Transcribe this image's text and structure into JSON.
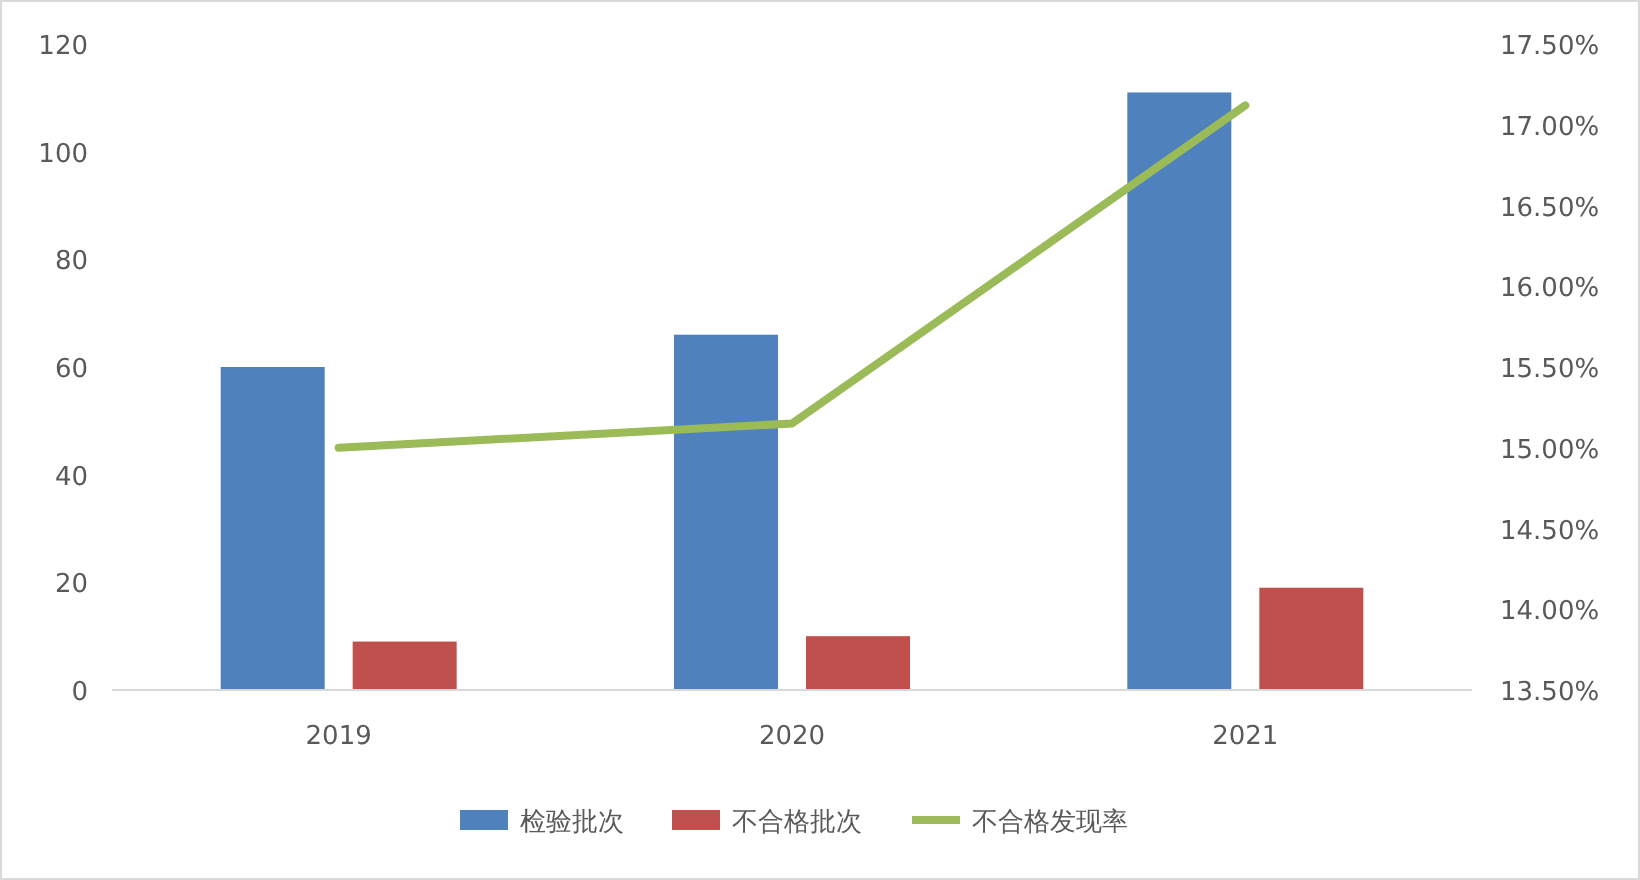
{
  "chart_data": {
    "type": "bar",
    "categories": [
      "2019",
      "2020",
      "2021"
    ],
    "series": [
      {
        "name": "检验批次",
        "color": "#4f81bd",
        "values": [
          60,
          66,
          111
        ]
      },
      {
        "name": "不合格批次",
        "color": "#c0504d",
        "values": [
          9,
          10,
          19
        ]
      },
      {
        "name": "不合格发现率",
        "color": "#9bbb59",
        "type": "line",
        "axis": "y2",
        "values": [
          15.0,
          15.15,
          17.12
        ]
      }
    ],
    "ylim": [
      0,
      120
    ],
    "yticks": [
      0,
      20,
      40,
      60,
      80,
      100,
      120
    ],
    "y2lim": [
      13.5,
      17.5
    ],
    "y2ticks": [
      {
        "value": 13.5,
        "label": "13.50%"
      },
      {
        "value": 14,
        "label": "14.00%"
      },
      {
        "value": 14.5,
        "label": "14.50%"
      },
      {
        "value": 15,
        "label": "15.00%"
      },
      {
        "value": 15.5,
        "label": "15.50%"
      },
      {
        "value": 16,
        "label": "16.00%"
      },
      {
        "value": 16.5,
        "label": "16.50%"
      },
      {
        "value": 17,
        "label": "17.00%"
      },
      {
        "value": 17.5,
        "label": "17.50%"
      }
    ],
    "legend": "bottom",
    "line_style": "solid"
  }
}
